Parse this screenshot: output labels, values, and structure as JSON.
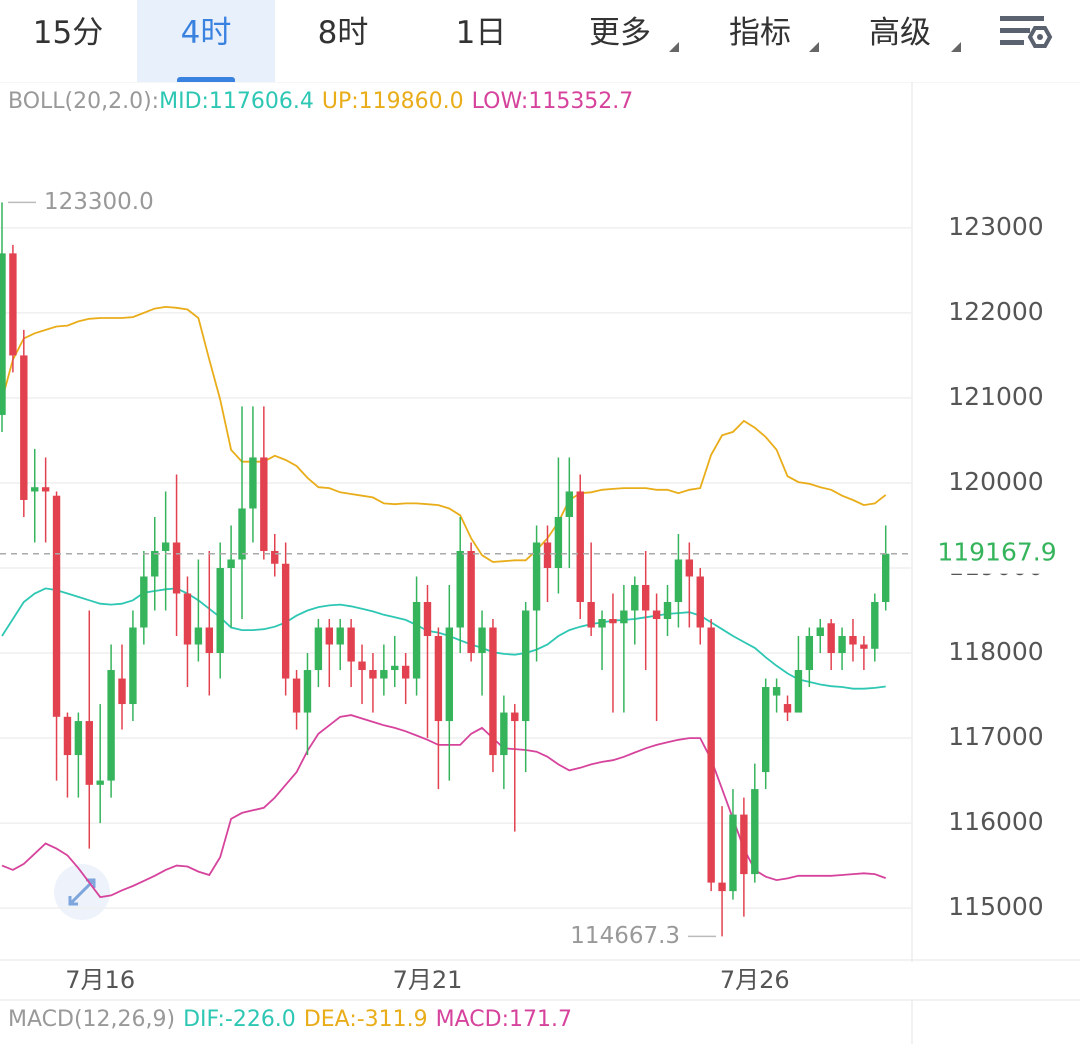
{
  "tabs": [
    "15分",
    "4时",
    "8时",
    "1日",
    "更多",
    "指标",
    "高级"
  ],
  "active_tab": 1,
  "chart_data": {
    "type": "candlestick",
    "categories": [
      null,
      null,
      null,
      null,
      null,
      null,
      null,
      null,
      null,
      "7月16",
      null,
      null,
      null,
      null,
      null,
      null,
      null,
      null,
      null,
      null,
      null,
      null,
      null,
      null,
      null,
      null,
      null,
      null,
      null,
      null,
      null,
      null,
      null,
      null,
      null,
      null,
      null,
      null,
      null,
      "7月21",
      null,
      null,
      null,
      null,
      null,
      null,
      null,
      null,
      null,
      null,
      null,
      null,
      null,
      null,
      null,
      null,
      null,
      null,
      null,
      null,
      null,
      null,
      null,
      null,
      null,
      null,
      null,
      null,
      null,
      "7月26",
      null,
      null,
      null,
      null,
      null,
      null,
      null,
      null,
      null,
      null,
      null,
      null
    ],
    "open": [
      120800,
      122700,
      121500,
      119900,
      119950,
      119850,
      117250,
      116800,
      117200,
      116450,
      116500,
      117700,
      117400,
      118300,
      118900,
      119200,
      119300,
      118700,
      118100,
      118300,
      118000,
      119000,
      119100,
      119700,
      120300,
      119200,
      119050,
      117700,
      117300,
      117800,
      118300,
      118100,
      118300,
      117900,
      117800,
      117700,
      117800,
      117850,
      117700,
      118600,
      118200,
      117200,
      118300,
      119200,
      118000,
      118300,
      116800,
      117300,
      117200,
      118500,
      119300,
      119000,
      119600,
      119900,
      118600,
      118300,
      118400,
      118350,
      118500,
      118800,
      118500,
      118400,
      118600,
      119100,
      118900,
      118300,
      115300,
      115200,
      116100,
      115400,
      116600,
      117500,
      117400,
      117300,
      117800,
      118200,
      118350,
      118000,
      118200,
      118100,
      118050,
      118600
    ],
    "high": [
      123300,
      122800,
      121800,
      120400,
      120300,
      119900,
      117300,
      117300,
      118500,
      117400,
      118100,
      118100,
      118500,
      119200,
      119600,
      119900,
      120100,
      118900,
      119100,
      119200,
      119300,
      119500,
      120900,
      120900,
      120900,
      119400,
      119300,
      117800,
      118000,
      118400,
      118400,
      118400,
      118400,
      118100,
      118000,
      118100,
      118200,
      118000,
      118900,
      118800,
      118300,
      118800,
      119600,
      119300,
      118500,
      118400,
      117500,
      117400,
      118600,
      119500,
      119500,
      120300,
      120300,
      120100,
      119300,
      118500,
      118700,
      118800,
      118900,
      119200,
      118700,
      118800,
      119400,
      119300,
      119000,
      118400,
      116200,
      116400,
      116300,
      116700,
      117700,
      117700,
      117500,
      118200,
      118300,
      118400,
      118400,
      118300,
      118400,
      118200,
      118700,
      119500
    ],
    "low": [
      120600,
      121300,
      119600,
      119300,
      119300,
      116500,
      116300,
      116300,
      115700,
      116000,
      116300,
      117100,
      117200,
      118100,
      118500,
      118500,
      118200,
      117600,
      117900,
      117500,
      117700,
      118300,
      118400,
      119300,
      119100,
      118900,
      117500,
      117100,
      116800,
      117600,
      117600,
      117800,
      117600,
      117400,
      117300,
      117500,
      117600,
      117400,
      117500,
      117000,
      116400,
      116500,
      118000,
      117900,
      117500,
      116600,
      116400,
      115900,
      116600,
      117900,
      118600,
      118700,
      119000,
      118400,
      118200,
      117800,
      117300,
      117300,
      118100,
      117800,
      117200,
      118200,
      118300,
      118300,
      118100,
      115200,
      114667.3,
      115100,
      114900,
      115300,
      116400,
      117300,
      117200,
      117300,
      117600,
      118000,
      117800,
      117800,
      117900,
      117800,
      117900,
      118500
    ],
    "close": [
      122700,
      121500,
      119800,
      119950,
      119900,
      117250,
      116800,
      117200,
      116450,
      116500,
      117800,
      117400,
      118300,
      118900,
      119200,
      119300,
      118700,
      118100,
      118300,
      118000,
      119000,
      119100,
      119700,
      120300,
      119200,
      119050,
      117700,
      117300,
      117800,
      118300,
      118100,
      118300,
      117900,
      117800,
      117700,
      117800,
      117850,
      117700,
      118600,
      118200,
      117200,
      118300,
      119200,
      118000,
      118300,
      116800,
      117300,
      117200,
      118500,
      119300,
      119000,
      119600,
      119900,
      118600,
      118300,
      118400,
      118350,
      118500,
      118800,
      118500,
      118400,
      118600,
      119100,
      118900,
      118300,
      115300,
      115200,
      116100,
      115400,
      116400,
      117600,
      117600,
      117300,
      117800,
      118200,
      118300,
      118000,
      118200,
      118100,
      118050,
      118600,
      119167.9
    ],
    "up_color": "#36b45c",
    "down_color": "#e2424f",
    "ylim": [
      114390,
      124680
    ],
    "yticks": [
      115000,
      116000,
      117000,
      118000,
      119000,
      120000,
      121000,
      122000,
      123000
    ],
    "grid": true,
    "indicator": {
      "label": "BOLL(20,2.0):",
      "series": [
        {
          "name": "MID",
          "legend": "MID:117606.4",
          "color": "#2ec7b4",
          "values": [
            118200,
            118400,
            118600,
            118700,
            118760,
            118740,
            118700,
            118660,
            118620,
            118580,
            118570,
            118580,
            118620,
            118710,
            118730,
            118750,
            118760,
            118700,
            118620,
            118520,
            118420,
            118300,
            118270,
            118270,
            118280,
            118310,
            118360,
            118440,
            118500,
            118540,
            118560,
            118570,
            118550,
            118520,
            118490,
            118450,
            118420,
            118390,
            118330,
            118260,
            118240,
            118200,
            118150,
            118100,
            118060,
            118010,
            117990,
            117980,
            118000,
            118040,
            118100,
            118200,
            118270,
            118310,
            118340,
            118360,
            118380,
            118390,
            118400,
            118420,
            118440,
            118460,
            118470,
            118480,
            118440,
            118360,
            118280,
            118200,
            118130,
            118060,
            117950,
            117850,
            117760,
            117690,
            117660,
            117630,
            117610,
            117600,
            117580,
            117580,
            117590,
            117606.4
          ]
        },
        {
          "name": "UP",
          "legend": "UP:119860.0",
          "color": "#e9ad1a",
          "values": [
            120980,
            121450,
            121700,
            121760,
            121800,
            121840,
            121850,
            121900,
            121930,
            121940,
            121940,
            121940,
            121950,
            122000,
            122050,
            122070,
            122060,
            122040,
            121940,
            121450,
            120980,
            120390,
            120250,
            120250,
            120250,
            120320,
            120270,
            120200,
            120060,
            119950,
            119940,
            119890,
            119870,
            119850,
            119830,
            119760,
            119750,
            119760,
            119760,
            119750,
            119740,
            119700,
            119620,
            119350,
            119150,
            119070,
            119080,
            119090,
            119090,
            119210,
            119350,
            119540,
            119800,
            119880,
            119890,
            119920,
            119930,
            119940,
            119940,
            119940,
            119920,
            119920,
            119880,
            119920,
            119940,
            120330,
            120560,
            120600,
            120730,
            120650,
            120540,
            120390,
            120080,
            120010,
            119990,
            119950,
            119920,
            119850,
            119800,
            119740,
            119760,
            119860
          ]
        },
        {
          "name": "LOW",
          "legend": "LOW:115352.7",
          "color": "#d6439c",
          "values": [
            115500,
            115450,
            115520,
            115640,
            115760,
            115700,
            115620,
            115470,
            115300,
            115130,
            115150,
            115210,
            115260,
            115320,
            115380,
            115450,
            115500,
            115490,
            115430,
            115390,
            115600,
            116050,
            116120,
            116150,
            116180,
            116300,
            116450,
            116600,
            116850,
            117050,
            117150,
            117250,
            117270,
            117230,
            117190,
            117150,
            117120,
            117080,
            117030,
            116980,
            116920,
            116920,
            116920,
            117050,
            117120,
            117000,
            116880,
            116870,
            116860,
            116840,
            116780,
            116690,
            116620,
            116650,
            116690,
            116720,
            116740,
            116780,
            116830,
            116880,
            116920,
            116950,
            116980,
            117000,
            117000,
            116750,
            116400,
            116050,
            115700,
            115450,
            115370,
            115330,
            115350,
            115380,
            115380,
            115380,
            115380,
            115390,
            115400,
            115410,
            115400,
            115352.7
          ]
        }
      ]
    },
    "current_price": {
      "value": 119167.9,
      "label": "119167.9"
    },
    "annotations": [
      {
        "value": 123300,
        "label": "123300.0",
        "index": 0
      },
      {
        "value": 114667.3,
        "label": "114667.3",
        "index": 66
      }
    ],
    "macd": {
      "label": "MACD(12,26,9)",
      "items": [
        {
          "text": "DIF:-226.0",
          "color": "#2ec7b4"
        },
        {
          "text": "DEA:-311.9",
          "color": "#e9ad1a"
        },
        {
          "text": "MACD:171.7",
          "color": "#d6439c"
        }
      ]
    }
  }
}
